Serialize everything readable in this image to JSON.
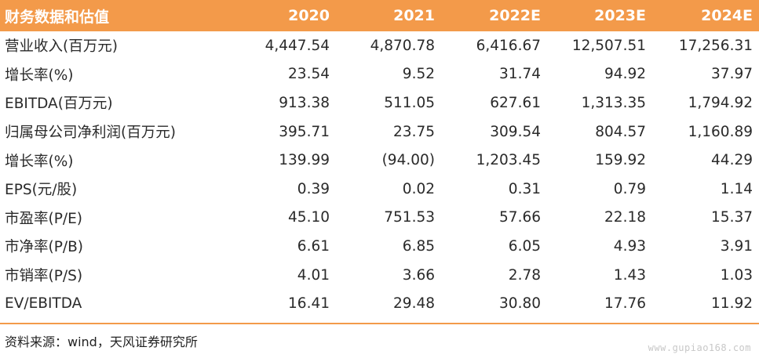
{
  "table": {
    "headers": [
      "财务数据和估值",
      "2020",
      "2021",
      "2022E",
      "2023E",
      "2024E"
    ],
    "rows": [
      [
        "营业收入(百万元)",
        "4,447.54",
        "4,870.78",
        "6,416.67",
        "12,507.51",
        "17,256.31"
      ],
      [
        "增长率(%)",
        "23.54",
        "9.52",
        "31.74",
        "94.92",
        "37.97"
      ],
      [
        "EBITDA(百万元)",
        "913.38",
        "511.05",
        "627.61",
        "1,313.35",
        "1,794.92"
      ],
      [
        "归属母公司净利润(百万元)",
        "395.71",
        "23.75",
        "309.54",
        "804.57",
        "1,160.89"
      ],
      [
        "增长率(%)",
        "139.99",
        "(94.00)",
        "1,203.45",
        "159.92",
        "44.29"
      ],
      [
        "EPS(元/股)",
        "0.39",
        "0.02",
        "0.31",
        "0.79",
        "1.14"
      ],
      [
        "市盈率(P/E)",
        "45.10",
        "751.53",
        "57.66",
        "22.18",
        "15.37"
      ],
      [
        "市净率(P/B)",
        "6.61",
        "6.85",
        "6.05",
        "4.93",
        "3.91"
      ],
      [
        "市销率(P/S)",
        "4.01",
        "3.66",
        "2.78",
        "1.43",
        "1.03"
      ],
      [
        "EV/EBITDA",
        "16.41",
        "29.48",
        "30.80",
        "17.76",
        "11.92"
      ]
    ]
  },
  "source": "资料来源：wind，天风证券研究所",
  "watermark": "www.gupiao168.com",
  "colors": {
    "header_bg": "#f39a4a",
    "header_text": "#ffffff",
    "rule": "#f39a4a"
  }
}
